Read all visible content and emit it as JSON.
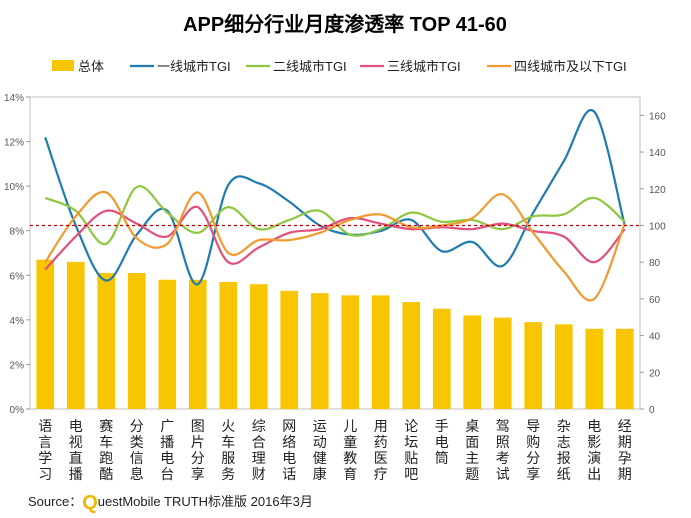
{
  "source": {
    "prefix": "Source：",
    "brand_letter": "Q",
    "brand_rest": "uestMobile TRUTH标准版 2016年3月"
  },
  "colors": {
    "bar": "#f7c600",
    "line1": "#1f7bb0",
    "line2": "#8dc63f",
    "line3": "#e0507a",
    "line4": "#f29a2e",
    "ref_line": "#c00000",
    "title": "#222222",
    "axis_text": "#555555"
  },
  "chart_data": {
    "type": "bar",
    "title": "APP细分行业月度渗透率 TOP 41-60",
    "categories": [
      "语言学习",
      "电视直播",
      "赛车跑酷",
      "分类信息",
      "广播电台",
      "图片分享",
      "火车服务",
      "综合理财",
      "网络电话",
      "运动健康",
      "儿童教育",
      "用药医疗",
      "论坛贴吧",
      "手电筒",
      "桌面主题",
      "驾照考试",
      "导购分享",
      "杂志报纸",
      "电影演出",
      "经期孕期"
    ],
    "y_left": {
      "min": 0,
      "max": 14,
      "step": 2,
      "ticks": [
        "0%",
        "2%",
        "4%",
        "6%",
        "8%",
        "10%",
        "12%",
        "14%"
      ]
    },
    "y_right": {
      "min": 0,
      "max": 170,
      "step": 20,
      "ticks": [
        "0",
        "20",
        "40",
        "60",
        "80",
        "100",
        "120",
        "140",
        "160"
      ]
    },
    "reference_line": {
      "value": 100,
      "axis": "right"
    },
    "legend_placement": "top",
    "bar_series": {
      "name": "总体",
      "axis": "left",
      "values": [
        6.7,
        6.6,
        6.1,
        6.1,
        5.8,
        5.8,
        5.7,
        5.6,
        5.3,
        5.2,
        5.1,
        5.1,
        4.8,
        4.5,
        4.2,
        4.1,
        3.9,
        3.8,
        3.6,
        3.6
      ]
    },
    "series": [
      {
        "name": "一线城市TGI",
        "axis": "right",
        "values": [
          148,
          100,
          70,
          95,
          108,
          68,
          122,
          123,
          113,
          100,
          95,
          97,
          103,
          86,
          91,
          78,
          107,
          135,
          162,
          100
        ]
      },
      {
        "name": "二线城市TGI",
        "axis": "right",
        "values": [
          115,
          108,
          90,
          121,
          107,
          96,
          110,
          98,
          103,
          108,
          95,
          98,
          107,
          102,
          103,
          98,
          105,
          106,
          115,
          102
        ]
      },
      {
        "name": "三线城市TGI",
        "axis": "right",
        "values": [
          76,
          94,
          108,
          101,
          94,
          110,
          80,
          88,
          96,
          98,
          104,
          101,
          98,
          99,
          98,
          101,
          97,
          94,
          80,
          98
        ]
      },
      {
        "name": "四线城市及以下TGI",
        "axis": "right",
        "values": [
          80,
          105,
          118,
          93,
          90,
          118,
          85,
          92,
          92,
          96,
          103,
          106,
          99,
          100,
          104,
          117,
          96,
          75,
          60,
          101
        ]
      }
    ]
  }
}
